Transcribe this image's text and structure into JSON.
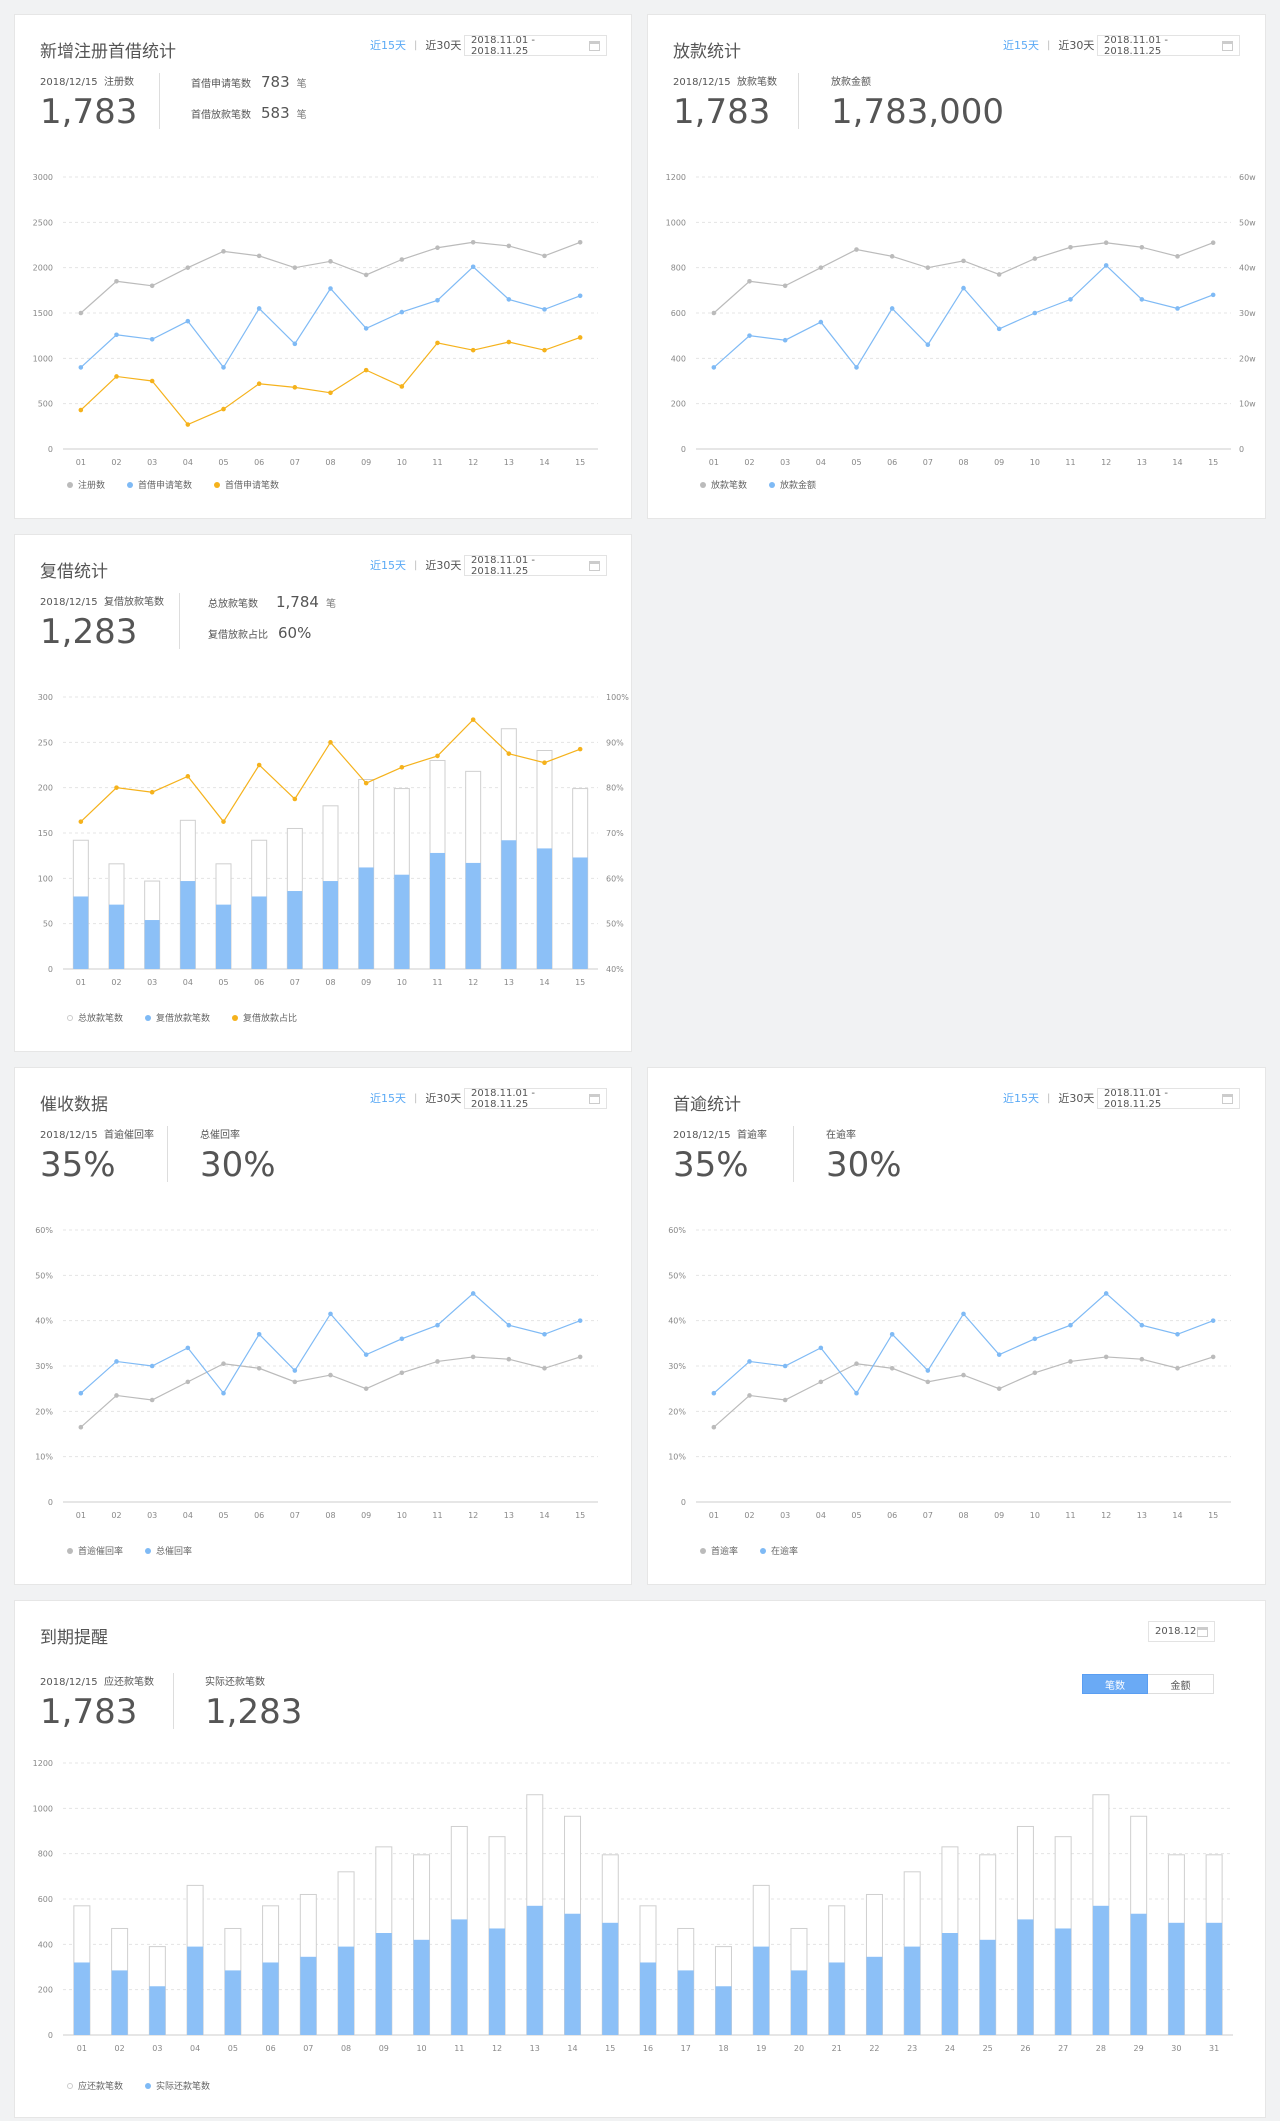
{
  "common": {
    "range_15": "近15天",
    "range_30": "近30天",
    "date_range": "2018.11.01 - 2018.11.25",
    "x_labels": [
      "01",
      "02",
      "03",
      "04",
      "05",
      "06",
      "07",
      "08",
      "09",
      "10",
      "11",
      "12",
      "13",
      "14",
      "15"
    ],
    "colors": {
      "gray": "#bbbbbb",
      "blue": "#7fbaf5",
      "orange": "#f5b21c",
      "bar_blue": "#8cc0f7",
      "bar_outline": "#cfcfcf"
    }
  },
  "panel1": {
    "title": "新增注册首借统计",
    "date_label": "2018/12/15",
    "main_label": "注册数",
    "main_value": "1,783",
    "kv1_label": "首借申请笔数",
    "kv1_value": "783",
    "kv1_unit": "笔",
    "kv2_label": "首借放款笔数",
    "kv2_value": "583",
    "kv2_unit": "笔",
    "legend": [
      "注册数",
      "首借申请笔数",
      "首借申请笔数"
    ],
    "chart_data": {
      "type": "line",
      "x": [
        "01",
        "02",
        "03",
        "04",
        "05",
        "06",
        "07",
        "08",
        "09",
        "10",
        "11",
        "12",
        "13",
        "14",
        "15"
      ],
      "ylim": [
        0,
        3000
      ],
      "yticks": [
        "3000",
        "2500",
        "2000",
        "1500",
        "1000",
        "500",
        "0"
      ],
      "series": [
        {
          "name": "注册数",
          "color": "#bbbbbb",
          "values": [
            1500,
            1850,
            1800,
            2000,
            2180,
            2130,
            2000,
            2070,
            1920,
            2090,
            2220,
            2280,
            2240,
            2130,
            2280
          ]
        },
        {
          "name": "首借申请笔数",
          "color": "#7fbaf5",
          "values": [
            900,
            1260,
            1210,
            1410,
            900,
            1550,
            1160,
            1770,
            1330,
            1510,
            1640,
            2010,
            1650,
            1540,
            1690
          ]
        },
        {
          "name": "首借申请笔数",
          "color": "#f5b21c",
          "values": [
            430,
            800,
            750,
            270,
            440,
            720,
            680,
            620,
            870,
            690,
            1170,
            1090,
            1180,
            1090,
            1230
          ]
        }
      ]
    }
  },
  "panel2": {
    "title": "放款统计",
    "date_label": "2018/12/15",
    "main_label": "放款笔数",
    "main_value": "1,783",
    "sub_label": "放款金额",
    "sub_value": "1,783,000",
    "legend": [
      "放款笔数",
      "放款金额"
    ],
    "chart_data": {
      "type": "line",
      "x": [
        "01",
        "02",
        "03",
        "04",
        "05",
        "06",
        "07",
        "08",
        "09",
        "10",
        "11",
        "12",
        "13",
        "14",
        "15"
      ],
      "ylim": [
        0,
        1200
      ],
      "yticks": [
        "1200",
        "1000",
        "800",
        "600",
        "400",
        "200",
        "0"
      ],
      "y2ticks": [
        "60w",
        "50w",
        "40w",
        "30w",
        "20w",
        "10w",
        "0"
      ],
      "series": [
        {
          "name": "放款笔数",
          "color": "#bbbbbb",
          "values": [
            600,
            740,
            720,
            800,
            880,
            850,
            800,
            830,
            770,
            840,
            890,
            910,
            890,
            850,
            910
          ]
        },
        {
          "name": "放款金额",
          "color": "#7fbaf5",
          "values": [
            360,
            500,
            480,
            560,
            360,
            620,
            460,
            710,
            530,
            600,
            660,
            810,
            660,
            620,
            680
          ]
        }
      ]
    }
  },
  "panel3": {
    "title": "复借统计",
    "date_label": "2018/12/15",
    "main_label": "复借放款笔数",
    "main_value": "1,283",
    "kv1_label": "总放款笔数",
    "kv1_value": "1,784",
    "kv1_unit": "笔",
    "kv2_label": "复借放款占比",
    "kv2_value": "60%",
    "legend": [
      "总放款笔数",
      "复借放款笔数",
      "复借放款占比"
    ],
    "chart_data": {
      "type": "bar",
      "x": [
        "01",
        "02",
        "03",
        "04",
        "05",
        "06",
        "07",
        "08",
        "09",
        "10",
        "11",
        "12",
        "13",
        "14",
        "15"
      ],
      "ylim": [
        0,
        300
      ],
      "yticks": [
        "300",
        "250",
        "200",
        "150",
        "100",
        "50",
        "0"
      ],
      "y2ticks": [
        "100%",
        "90%",
        "80%",
        "70%",
        "60%",
        "50%",
        "40%"
      ],
      "series": [
        {
          "name": "总放款笔数",
          "values": [
            142,
            116,
            97,
            164,
            116,
            142,
            155,
            180,
            209,
            199,
            230,
            218,
            265,
            241,
            199
          ]
        },
        {
          "name": "复借放款笔数",
          "values": [
            80,
            71,
            54,
            97,
            71,
            80,
            86,
            97,
            112,
            104,
            128,
            117,
            142,
            133,
            123
          ]
        },
        {
          "name": "复借放款占比",
          "values": [
            72.5,
            80,
            79,
            82.5,
            72.5,
            85,
            77.5,
            90,
            81,
            84.5,
            87,
            95,
            87.5,
            85.5,
            88.5
          ]
        }
      ]
    }
  },
  "panel4": {
    "title": "催收数据",
    "date_label": "2018/12/15",
    "main_label": "首逾催回率",
    "main_value": "35%",
    "sub_label": "总催回率",
    "sub_value": "30%",
    "legend": [
      "首逾催回率",
      "总催回率"
    ],
    "chart_data": {
      "type": "line",
      "x": [
        "01",
        "02",
        "03",
        "04",
        "05",
        "06",
        "07",
        "08",
        "09",
        "10",
        "11",
        "12",
        "13",
        "14",
        "15"
      ],
      "ylim": [
        0,
        60
      ],
      "yticks": [
        "60%",
        "50%",
        "40%",
        "30%",
        "20%",
        "10%",
        "0"
      ],
      "series": [
        {
          "name": "首逾催回率",
          "color": "#bbbbbb",
          "values": [
            16.5,
            23.5,
            22.5,
            26.5,
            30.5,
            29.5,
            26.5,
            28,
            25,
            28.5,
            31,
            32,
            31.5,
            29.5,
            32
          ]
        },
        {
          "name": "总催回率",
          "color": "#7fbaf5",
          "values": [
            24,
            31,
            30,
            34,
            24,
            37,
            29,
            41.5,
            32.5,
            36,
            39,
            46,
            39,
            37,
            40
          ]
        }
      ]
    }
  },
  "panel5": {
    "title": "首逾统计",
    "date_label": "2018/12/15",
    "main_label": "首逾率",
    "main_value": "35%",
    "sub_label": "在逾率",
    "sub_value": "30%",
    "legend": [
      "首逾率",
      "在逾率"
    ],
    "chart_data": {
      "type": "line",
      "x": [
        "01",
        "02",
        "03",
        "04",
        "05",
        "06",
        "07",
        "08",
        "09",
        "10",
        "11",
        "12",
        "13",
        "14",
        "15"
      ],
      "ylim": [
        0,
        60
      ],
      "yticks": [
        "60%",
        "50%",
        "40%",
        "30%",
        "20%",
        "10%",
        "0"
      ],
      "series": [
        {
          "name": "首逾率",
          "color": "#bbbbbb",
          "values": [
            16.5,
            23.5,
            22.5,
            26.5,
            30.5,
            29.5,
            26.5,
            28,
            25,
            28.5,
            31,
            32,
            31.5,
            29.5,
            32
          ]
        },
        {
          "name": "在逾率",
          "color": "#7fbaf5",
          "values": [
            24,
            31,
            30,
            34,
            24,
            37,
            29,
            41.5,
            32.5,
            36,
            39,
            46,
            39,
            37,
            40
          ]
        }
      ]
    }
  },
  "panel6": {
    "title": "到期提醒",
    "month": "2018.12",
    "date_label": "2018/12/15",
    "main_label": "应还款笔数",
    "main_value": "1,783",
    "sub_label": "实际还款笔数",
    "sub_value": "1,283",
    "toggle": [
      "笔数",
      "金额"
    ],
    "legend": [
      "应还款笔数",
      "实际还款笔数"
    ],
    "chart_data": {
      "type": "bar",
      "x": [
        "01",
        "02",
        "03",
        "04",
        "05",
        "06",
        "07",
        "08",
        "09",
        "10",
        "11",
        "12",
        "13",
        "14",
        "15",
        "16",
        "17",
        "18",
        "19",
        "20",
        "21",
        "22",
        "23",
        "24",
        "25",
        "26",
        "27",
        "28",
        "29",
        "30",
        "31"
      ],
      "ylim": [
        0,
        1200
      ],
      "yticks": [
        "1200",
        "1000",
        "800",
        "600",
        "400",
        "200",
        "0"
      ],
      "series": [
        {
          "name": "应还款笔数",
          "values": [
            570,
            470,
            390,
            660,
            470,
            570,
            620,
            720,
            830,
            795,
            920,
            875,
            1060,
            965,
            795,
            570,
            470,
            390,
            660,
            470,
            570,
            620,
            720,
            830,
            795,
            920,
            875,
            1060,
            965,
            795,
            795
          ]
        },
        {
          "name": "实际还款笔数",
          "values": [
            320,
            285,
            215,
            390,
            285,
            320,
            345,
            390,
            450,
            420,
            510,
            470,
            570,
            535,
            495,
            320,
            285,
            215,
            390,
            285,
            320,
            345,
            390,
            450,
            420,
            510,
            470,
            570,
            535,
            495,
            495
          ]
        }
      ]
    }
  }
}
